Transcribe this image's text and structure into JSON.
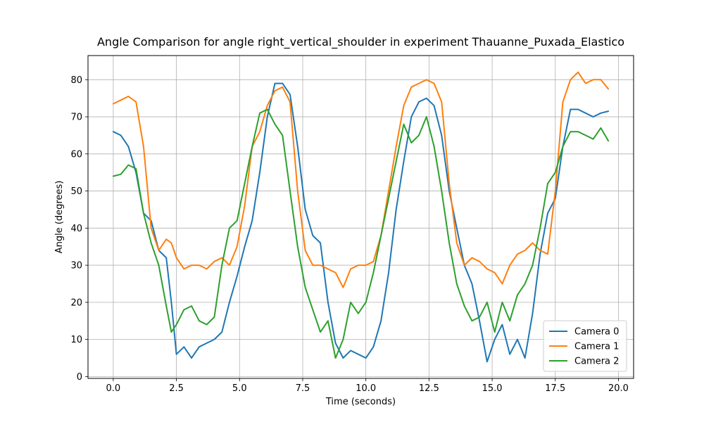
{
  "chart_data": {
    "type": "line",
    "title": "Angle Comparison for angle right_vertical_shoulder in experiment Thauanne_Puxada_Elastico",
    "xlabel": "Time (seconds)",
    "ylabel": "Angle (degrees)",
    "xlim": [
      -1.0,
      20.6
    ],
    "ylim": [
      -0.5,
      86.5
    ],
    "xticks": [
      0.0,
      2.5,
      5.0,
      7.5,
      10.0,
      12.5,
      15.0,
      17.5,
      20.0
    ],
    "xtick_labels": [
      "0.0",
      "2.5",
      "5.0",
      "7.5",
      "10.0",
      "12.5",
      "15.0",
      "17.5",
      "20.0"
    ],
    "yticks": [
      0,
      10,
      20,
      30,
      40,
      50,
      60,
      70,
      80
    ],
    "ytick_labels": [
      "0",
      "10",
      "20",
      "30",
      "40",
      "50",
      "60",
      "70",
      "80"
    ],
    "grid": true,
    "legend_position": "lower right",
    "series": [
      {
        "name": "Camera 0",
        "color": "#1f77b4",
        "x": [
          0.0,
          0.3,
          0.6,
          0.9,
          1.2,
          1.5,
          1.8,
          2.1,
          2.3,
          2.5,
          2.8,
          3.1,
          3.4,
          3.7,
          4.0,
          4.3,
          4.6,
          4.9,
          5.2,
          5.5,
          5.8,
          6.1,
          6.4,
          6.7,
          7.0,
          7.3,
          7.6,
          7.9,
          8.2,
          8.5,
          8.8,
          9.1,
          9.4,
          9.7,
          10.0,
          10.3,
          10.6,
          10.9,
          11.2,
          11.5,
          11.8,
          12.1,
          12.4,
          12.7,
          13.0,
          13.3,
          13.6,
          13.9,
          14.2,
          14.5,
          14.8,
          15.1,
          15.4,
          15.7,
          16.0,
          16.3,
          16.6,
          16.9,
          17.2,
          17.5,
          17.8,
          18.1,
          18.4,
          18.7,
          19.0,
          19.3,
          19.6
        ],
        "y": [
          66,
          65,
          62,
          55,
          44,
          42,
          34,
          32,
          20,
          6,
          8,
          5,
          8,
          9,
          10,
          12,
          20,
          27,
          35,
          42,
          55,
          70,
          79,
          79,
          76,
          62,
          45,
          38,
          36,
          20,
          9,
          5,
          7,
          6,
          5,
          8,
          15,
          28,
          45,
          58,
          70,
          74,
          75,
          73,
          65,
          50,
          40,
          30,
          25,
          15,
          4,
          10,
          14,
          6,
          10,
          5,
          17,
          33,
          44,
          48,
          62,
          72,
          72,
          71,
          70,
          71,
          71.5
        ]
      },
      {
        "name": "Camera 1",
        "color": "#ff7f0e",
        "x": [
          0.0,
          0.3,
          0.6,
          0.9,
          1.2,
          1.5,
          1.8,
          2.1,
          2.3,
          2.5,
          2.8,
          3.1,
          3.4,
          3.7,
          4.0,
          4.3,
          4.6,
          4.9,
          5.2,
          5.5,
          5.8,
          6.1,
          6.4,
          6.7,
          7.0,
          7.3,
          7.6,
          7.9,
          8.2,
          8.5,
          8.8,
          9.1,
          9.4,
          9.7,
          10.0,
          10.3,
          10.6,
          10.9,
          11.2,
          11.5,
          11.8,
          12.1,
          12.4,
          12.7,
          13.0,
          13.3,
          13.6,
          13.9,
          14.2,
          14.5,
          14.8,
          15.1,
          15.4,
          15.7,
          16.0,
          16.3,
          16.6,
          16.9,
          17.2,
          17.5,
          17.8,
          18.1,
          18.4,
          18.7,
          19.0,
          19.3,
          19.6
        ],
        "y": [
          73.5,
          74.5,
          75.5,
          74,
          62,
          40,
          34,
          37,
          36,
          32,
          29,
          30,
          30,
          29,
          31,
          32,
          30,
          35,
          46,
          62,
          66,
          73,
          77,
          78,
          74,
          50,
          34,
          30,
          30,
          29,
          28,
          24,
          29,
          30,
          30,
          31,
          38,
          50,
          62,
          73,
          78,
          79,
          80,
          79,
          74,
          52,
          36,
          30,
          32,
          31,
          29,
          28,
          25,
          30,
          33,
          34,
          36,
          34,
          33,
          50,
          74,
          80,
          82,
          79,
          80,
          80,
          77.5
        ]
      },
      {
        "name": "Camera 2",
        "color": "#2ca02c",
        "x": [
          0.0,
          0.3,
          0.6,
          0.9,
          1.2,
          1.5,
          1.8,
          2.1,
          2.3,
          2.5,
          2.8,
          3.1,
          3.4,
          3.7,
          4.0,
          4.3,
          4.6,
          4.9,
          5.2,
          5.5,
          5.8,
          6.1,
          6.4,
          6.7,
          7.0,
          7.3,
          7.6,
          7.9,
          8.2,
          8.5,
          8.8,
          9.1,
          9.4,
          9.7,
          10.0,
          10.3,
          10.6,
          10.9,
          11.2,
          11.5,
          11.8,
          12.1,
          12.4,
          12.7,
          13.0,
          13.3,
          13.6,
          13.9,
          14.2,
          14.5,
          14.8,
          15.1,
          15.4,
          15.7,
          16.0,
          16.3,
          16.6,
          16.9,
          17.2,
          17.5,
          17.8,
          18.1,
          18.4,
          18.7,
          19.0,
          19.3,
          19.6
        ],
        "y": [
          54,
          54.5,
          57,
          56,
          44,
          36,
          30,
          19,
          12,
          14,
          18,
          19,
          15,
          14,
          16,
          30,
          40,
          42,
          52,
          62,
          71,
          72,
          68,
          65,
          50,
          35,
          24,
          18,
          12,
          15,
          5,
          10,
          20,
          17,
          20,
          28,
          38,
          48,
          58,
          68,
          63,
          65,
          70,
          62,
          50,
          36,
          25,
          19,
          15,
          16,
          20,
          12,
          20,
          15,
          22,
          25,
          30,
          40,
          52,
          55,
          62,
          66,
          66,
          65,
          64,
          67,
          63.5
        ]
      }
    ]
  }
}
